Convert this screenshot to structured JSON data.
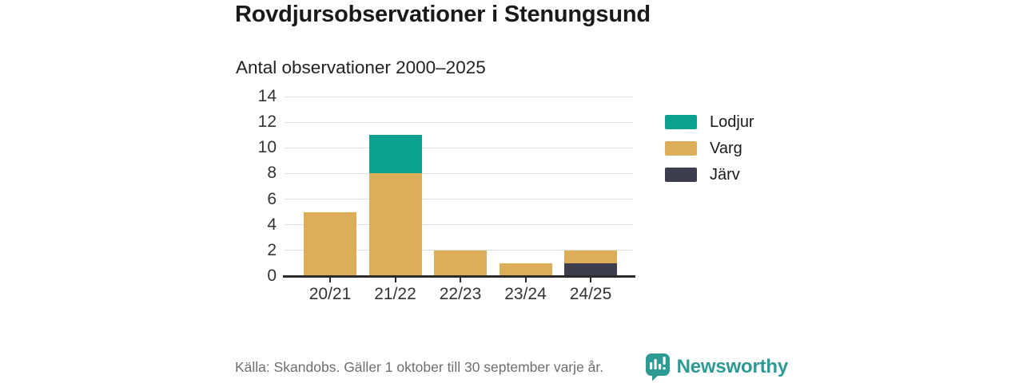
{
  "title": "Rovdjursobservationer i Stenungsund",
  "subtitle": "Antal observationer 2000–2025",
  "footer": {
    "source": "Källa: Skandobs. Gäller 1 oktober till 30 september varje år.",
    "brand": "Newsworthy",
    "brand_color": "#2d9a94",
    "logo_icon": "speech-bubble-bar-chart-icon"
  },
  "colors": {
    "grid": "#e0e0e0",
    "axis": "#2b2b2b",
    "tick_label": "#333333",
    "source_text": "#6e6e6e"
  },
  "chart_data": {
    "type": "bar",
    "stacked": true,
    "title": "Rovdjursobservationer i Stenungsund",
    "subtitle": "Antal observationer 2000–2025",
    "xlabel": "",
    "ylabel": "",
    "categories": [
      "20/21",
      "21/22",
      "22/23",
      "23/24",
      "24/25"
    ],
    "series": [
      {
        "name": "Lodjur",
        "color": "#0aa18f",
        "values": [
          0,
          3,
          0,
          0,
          0
        ]
      },
      {
        "name": "Varg",
        "color": "#dcae59",
        "values": [
          5,
          8,
          2,
          1,
          1
        ]
      },
      {
        "name": "Järv",
        "color": "#3d3d4d",
        "values": [
          0,
          0,
          0,
          0,
          1
        ]
      }
    ],
    "stack_order_bottom_to_top": [
      "Järv",
      "Varg",
      "Lodjur"
    ],
    "totals": [
      5,
      11,
      2,
      1,
      2
    ],
    "ylim": [
      0,
      14
    ],
    "yticks": [
      0,
      2,
      4,
      6,
      8,
      10,
      12,
      14
    ],
    "grid": "horizontal",
    "legend_position": "right",
    "legend_order": [
      "Lodjur",
      "Varg",
      "Järv"
    ]
  }
}
